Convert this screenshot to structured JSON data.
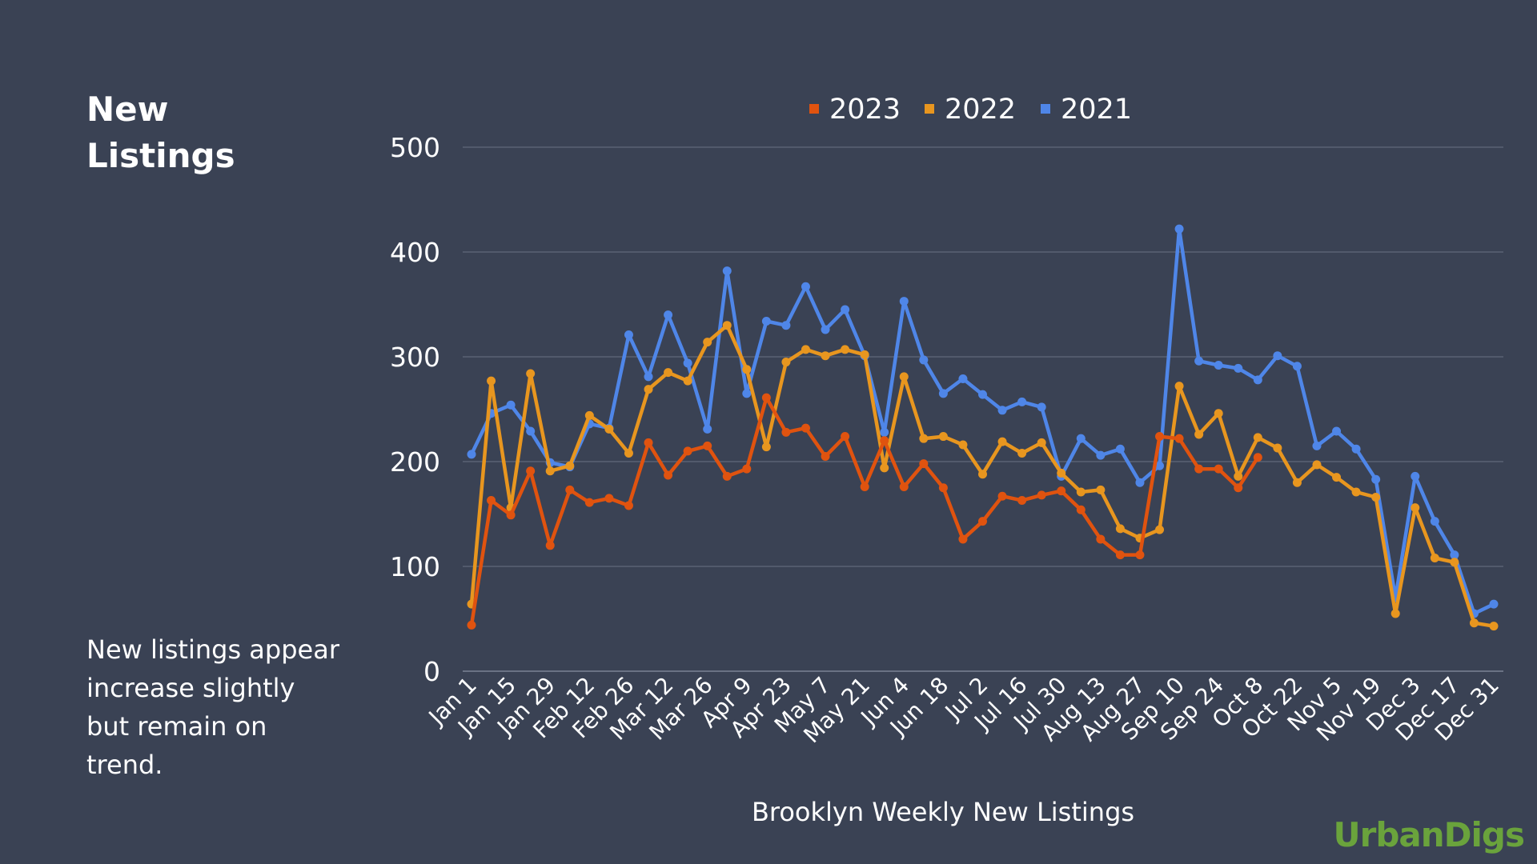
{
  "title": "New Listings",
  "note": "New listings appear increase slightly but remain on trend.",
  "logo": "UrbanDigs",
  "chart_data": {
    "type": "line",
    "title": "",
    "xlabel": "Brooklyn Weekly New Listings",
    "ylabel": "",
    "ylim": [
      0,
      500
    ],
    "yticks": [
      0,
      100,
      200,
      300,
      400,
      500
    ],
    "grid": true,
    "legend_position": "top",
    "x_tick_labels": [
      "Jan 1",
      "Jan 15",
      "Jan 29",
      "Feb 12",
      "Feb 26",
      "Mar 12",
      "Mar 26",
      "Apr 9",
      "Apr 23",
      "May 7",
      "May 21",
      "Jun 4",
      "Jun 18",
      "Jul 2",
      "Jul 16",
      "Jul 30",
      "Aug 13",
      "Aug 27",
      "Sep 10",
      "Sep 24",
      "Oct 8",
      "Oct 22",
      "Nov 5",
      "Nov 19",
      "Dec 3",
      "Dec 17",
      "Dec 31"
    ],
    "weeks": 53,
    "series": [
      {
        "name": "2023",
        "color": "#e0530f",
        "values": [
          44,
          163,
          149,
          191,
          120,
          173,
          161,
          165,
          158,
          218,
          187,
          210,
          215,
          186,
          193,
          261,
          228,
          232,
          205,
          224,
          176,
          220,
          176,
          198,
          175,
          126,
          143,
          167,
          163,
          168,
          172,
          154,
          126,
          111,
          111,
          224,
          222,
          193,
          193,
          175,
          204
        ]
      },
      {
        "name": "2022",
        "color": "#e8961f",
        "values": [
          64,
          277,
          156,
          284,
          191,
          196,
          244,
          231,
          208,
          269,
          285,
          277,
          314,
          330,
          288,
          214,
          295,
          307,
          301,
          307,
          302,
          194,
          281,
          222,
          224,
          216,
          188,
          219,
          208,
          218,
          189,
          171,
          173,
          136,
          127,
          135,
          272,
          226,
          246,
          186,
          223,
          213,
          180,
          197,
          185,
          171,
          166,
          55,
          156,
          108,
          104,
          46,
          43
        ]
      },
      {
        "name": "2021",
        "color": "#4f86e8",
        "values": [
          207,
          246,
          254,
          229,
          199,
          195,
          236,
          232,
          321,
          281,
          340,
          294,
          231,
          382,
          265,
          334,
          330,
          367,
          326,
          345,
          301,
          228,
          353,
          297,
          265,
          279,
          264,
          249,
          257,
          252,
          186,
          222,
          206,
          212,
          180,
          196,
          422,
          296,
          292,
          289,
          278,
          301,
          291,
          215,
          229,
          212,
          183,
          70,
          186,
          143,
          111,
          55,
          64
        ]
      }
    ]
  }
}
